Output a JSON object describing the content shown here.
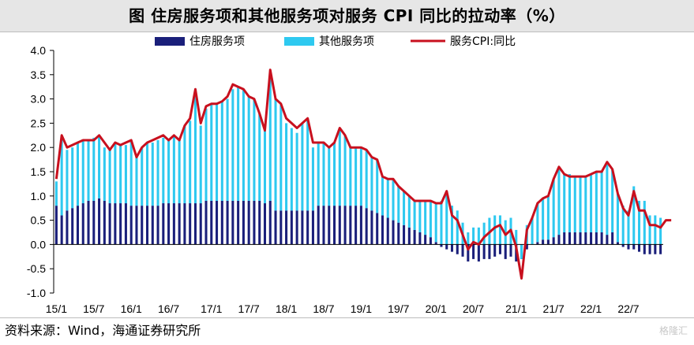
{
  "title": "图  住房服务项和其他服务项对服务 CPI 同比的拉动率（%）",
  "source": "资料来源：Wind，海通证券研究所",
  "watermark": "格隆汇",
  "colors": {
    "housing": "#1a1f7a",
    "other": "#2ec9f0",
    "line": "#c8101e",
    "axis": "#000000"
  },
  "chart_data": {
    "type": "bar",
    "subtype": "stacked bar with line overlay",
    "title": "住房服务项和其他服务项对服务 CPI 同比的拉动率（%）",
    "ylim": [
      -1.0,
      4.0
    ],
    "yticks": [
      "4.0",
      "3.5",
      "3.0",
      "2.5",
      "2.0",
      "1.5",
      "1.0",
      "0.5",
      "0.0",
      "-0.5",
      "-1.0"
    ],
    "xtick_labels": [
      "15/1",
      "15/7",
      "16/1",
      "16/7",
      "17/1",
      "17/7",
      "18/1",
      "18/7",
      "19/1",
      "19/7",
      "20/1",
      "20/7",
      "21/1",
      "21/7",
      "22/1",
      "22/7"
    ],
    "legend": {
      "position": "top",
      "items": [
        "住房服务项",
        "其他服务项",
        "服务CPI:同比"
      ]
    },
    "series": [
      {
        "name": "住房服务项",
        "kind": "bar",
        "values": [
          0.8,
          0.6,
          0.7,
          0.75,
          0.8,
          0.85,
          0.9,
          0.9,
          0.95,
          0.9,
          0.85,
          0.85,
          0.85,
          0.85,
          0.8,
          0.8,
          0.8,
          0.8,
          0.8,
          0.8,
          0.85,
          0.85,
          0.85,
          0.85,
          0.85,
          0.85,
          0.85,
          0.85,
          0.9,
          0.9,
          0.9,
          0.9,
          0.9,
          0.9,
          0.9,
          0.9,
          0.9,
          0.9,
          0.9,
          0.85,
          0.9,
          0.7,
          0.7,
          0.7,
          0.7,
          0.7,
          0.7,
          0.7,
          0.7,
          0.8,
          0.8,
          0.8,
          0.8,
          0.8,
          0.8,
          0.8,
          0.8,
          0.8,
          0.75,
          0.7,
          0.65,
          0.6,
          0.55,
          0.5,
          0.45,
          0.4,
          0.35,
          0.3,
          0.25,
          0.2,
          0.15,
          0.05,
          -0.05,
          -0.1,
          -0.15,
          -0.2,
          -0.25,
          -0.35,
          -0.3,
          -0.35,
          -0.3,
          -0.3,
          -0.25,
          -0.2,
          -0.3,
          -0.25,
          -0.35,
          -0.3,
          -0.1,
          0.0,
          0.05,
          0.1,
          0.1,
          0.15,
          0.2,
          0.25,
          0.25,
          0.25,
          0.25,
          0.25,
          0.25,
          0.25,
          0.25,
          0.2,
          0.25,
          0.05,
          -0.05,
          -0.1,
          -0.1,
          -0.15,
          -0.2,
          -0.2,
          -0.2,
          -0.2
        ]
      },
      {
        "name": "其他服务项",
        "kind": "bar",
        "values": [
          0.5,
          1.6,
          1.25,
          1.25,
          1.3,
          1.3,
          1.25,
          1.3,
          1.3,
          1.1,
          1.1,
          1.25,
          1.2,
          1.2,
          1.35,
          1.0,
          1.2,
          1.3,
          1.3,
          1.35,
          1.35,
          1.3,
          1.4,
          1.3,
          1.6,
          1.7,
          2.3,
          1.6,
          1.9,
          2.0,
          2.0,
          2.05,
          2.1,
          2.3,
          2.35,
          2.3,
          2.15,
          2.1,
          1.8,
          1.5,
          2.6,
          2.3,
          2.2,
          1.8,
          1.7,
          1.6,
          1.8,
          1.85,
          1.3,
          1.3,
          1.3,
          1.2,
          1.3,
          1.6,
          1.45,
          1.2,
          1.2,
          1.2,
          1.2,
          1.1,
          1.1,
          0.8,
          0.8,
          0.85,
          0.75,
          0.7,
          0.65,
          0.6,
          0.65,
          0.7,
          0.75,
          0.8,
          0.9,
          1.1,
          0.8,
          0.7,
          0.45,
          0.25,
          0.35,
          0.35,
          0.45,
          0.55,
          0.6,
          0.6,
          0.5,
          0.55,
          0.3,
          -0.3,
          0.4,
          0.55,
          0.8,
          0.85,
          0.9,
          1.2,
          1.4,
          1.2,
          1.2,
          1.15,
          1.15,
          1.15,
          1.2,
          1.25,
          1.25,
          1.45,
          1.3,
          1.0,
          0.8,
          0.7,
          1.2,
          0.9,
          0.9,
          0.6,
          0.6,
          0.55,
          0.7,
          0.7
        ]
      },
      {
        "name": "服务CPI:同比",
        "kind": "line",
        "values": [
          1.35,
          2.25,
          2.0,
          2.05,
          2.1,
          2.15,
          2.15,
          2.15,
          2.25,
          2.1,
          1.95,
          2.1,
          2.05,
          2.1,
          2.15,
          1.8,
          2.0,
          2.1,
          2.15,
          2.2,
          2.25,
          2.15,
          2.25,
          2.15,
          2.45,
          2.6,
          3.2,
          2.5,
          2.85,
          2.9,
          2.9,
          2.95,
          3.05,
          3.3,
          3.25,
          3.2,
          3.05,
          3.0,
          2.7,
          2.35,
          3.6,
          3.0,
          2.9,
          2.6,
          2.5,
          2.4,
          2.5,
          2.6,
          2.1,
          2.1,
          2.1,
          2.0,
          2.1,
          2.4,
          2.25,
          2.0,
          2.0,
          2.0,
          1.95,
          1.8,
          1.75,
          1.4,
          1.35,
          1.35,
          1.2,
          1.1,
          1.0,
          0.9,
          0.9,
          0.9,
          0.9,
          0.85,
          0.85,
          1.1,
          0.6,
          0.5,
          0.2,
          -0.1,
          0.05,
          0.0,
          0.15,
          0.25,
          0.35,
          0.4,
          0.2,
          0.3,
          -0.05,
          -0.7,
          0.3,
          0.55,
          0.85,
          0.95,
          1.0,
          1.35,
          1.6,
          1.45,
          1.4,
          1.4,
          1.4,
          1.4,
          1.45,
          1.5,
          1.5,
          1.7,
          1.55,
          1.05,
          0.75,
          0.6,
          1.1,
          0.7,
          0.7,
          0.4,
          0.4,
          0.35,
          0.5,
          0.5
        ]
      }
    ]
  }
}
